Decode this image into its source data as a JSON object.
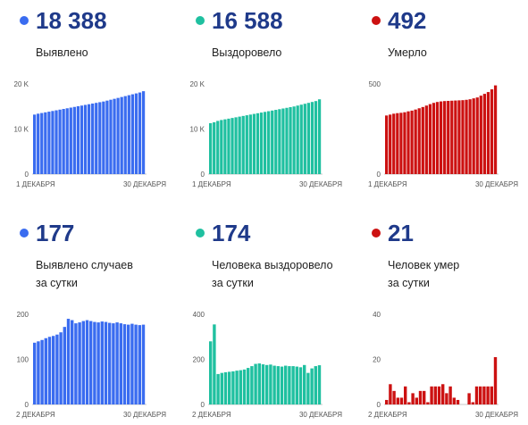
{
  "chart_data": [
    {
      "type": "bar",
      "headline": "18 388",
      "label_lines": [
        "Выявлено"
      ],
      "color": "#3a6cf0",
      "x_start_label": "1 ДЕКАБРЯ",
      "x_end_label": "30 ДЕКАБРЯ",
      "ylim": [
        0,
        20000
      ],
      "yticks": [
        {
          "v": 0,
          "t": "0"
        },
        {
          "v": 10000,
          "t": "10 K"
        },
        {
          "v": 20000,
          "t": "20 K"
        }
      ],
      "values": [
        13200,
        13400,
        13550,
        13700,
        13850,
        14000,
        14150,
        14300,
        14450,
        14600,
        14750,
        14900,
        15050,
        15200,
        15350,
        15500,
        15650,
        15800,
        15950,
        16100,
        16300,
        16500,
        16700,
        16900,
        17100,
        17300,
        17500,
        17700,
        17900,
        18100,
        18388
      ]
    },
    {
      "type": "bar",
      "headline": "16 588",
      "label_lines": [
        "Выздоровело"
      ],
      "color": "#1fc0a0",
      "x_start_label": "1 ДЕКАБРЯ",
      "x_end_label": "30 ДЕКАБРЯ",
      "ylim": [
        0,
        20000
      ],
      "yticks": [
        {
          "v": 0,
          "t": "0"
        },
        {
          "v": 10000,
          "t": "10 K"
        },
        {
          "v": 20000,
          "t": "20 K"
        }
      ],
      "values": [
        11300,
        11500,
        11800,
        12000,
        12150,
        12300,
        12450,
        12600,
        12750,
        12900,
        13050,
        13200,
        13350,
        13500,
        13650,
        13800,
        13950,
        14100,
        14250,
        14400,
        14550,
        14700,
        14850,
        15000,
        15200,
        15400,
        15600,
        15800,
        16000,
        16200,
        16588
      ]
    },
    {
      "type": "bar",
      "headline": "492",
      "label_lines": [
        "Умерло"
      ],
      "color": "#cc1111",
      "x_start_label": "1 ДЕКАБРЯ",
      "x_end_label": "30 ДЕКАБРЯ",
      "ylim": [
        0,
        500
      ],
      "yticks": [
        {
          "v": 0,
          "t": "0"
        },
        {
          "v": 500,
          "t": "500"
        }
      ],
      "values": [
        325,
        330,
        335,
        338,
        340,
        343,
        348,
        352,
        358,
        365,
        372,
        380,
        388,
        395,
        400,
        403,
        405,
        406,
        407,
        408,
        409,
        410,
        412,
        415,
        420,
        425,
        435,
        445,
        455,
        470,
        492
      ]
    },
    {
      "type": "bar",
      "headline": "177",
      "label_lines": [
        "Выявлено случаев",
        "за сутки"
      ],
      "color": "#3a6cf0",
      "x_start_label": "2 ДЕКАБРЯ",
      "x_end_label": "30 ДЕКАБРЯ",
      "ylim": [
        0,
        200
      ],
      "yticks": [
        {
          "v": 0,
          "t": "0"
        },
        {
          "v": 100,
          "t": "100"
        },
        {
          "v": 200,
          "t": "200"
        }
      ],
      "values": [
        137,
        140,
        143,
        147,
        150,
        152,
        155,
        160,
        172,
        190,
        187,
        180,
        182,
        185,
        187,
        185,
        183,
        182,
        184,
        183,
        181,
        180,
        182,
        180,
        178,
        177,
        179,
        177,
        176,
        177
      ]
    },
    {
      "type": "bar",
      "headline": "174",
      "label_lines": [
        "Человека выздоровело",
        "за сутки"
      ],
      "color": "#1fc0a0",
      "x_start_label": "2 ДЕКАБРЯ",
      "x_end_label": "30 ДЕКАБРЯ",
      "ylim": [
        0,
        400
      ],
      "yticks": [
        {
          "v": 0,
          "t": "0"
        },
        {
          "v": 200,
          "t": "200"
        },
        {
          "v": 400,
          "t": "400"
        }
      ],
      "values": [
        280,
        355,
        135,
        140,
        143,
        145,
        147,
        150,
        152,
        155,
        162,
        170,
        180,
        182,
        178,
        175,
        177,
        172,
        170,
        168,
        172,
        170,
        170,
        168,
        165,
        175,
        140,
        160,
        170,
        174
      ]
    },
    {
      "type": "bar",
      "headline": "21",
      "label_lines": [
        "Человек умер",
        "за сутки"
      ],
      "color": "#cc1111",
      "x_start_label": "2 ДЕКАБРЯ",
      "x_end_label": "30 ДЕКАБРЯ",
      "ylim": [
        0,
        40
      ],
      "yticks": [
        {
          "v": 0,
          "t": "0"
        },
        {
          "v": 20,
          "t": "20"
        },
        {
          "v": 40,
          "t": "40"
        }
      ],
      "values": [
        2,
        9,
        6,
        3,
        3,
        8,
        1,
        5,
        3,
        6,
        6,
        1,
        8,
        8,
        8,
        9,
        5,
        8,
        3,
        2,
        0,
        0,
        5,
        1,
        8,
        8,
        8,
        8,
        8,
        21
      ]
    }
  ]
}
